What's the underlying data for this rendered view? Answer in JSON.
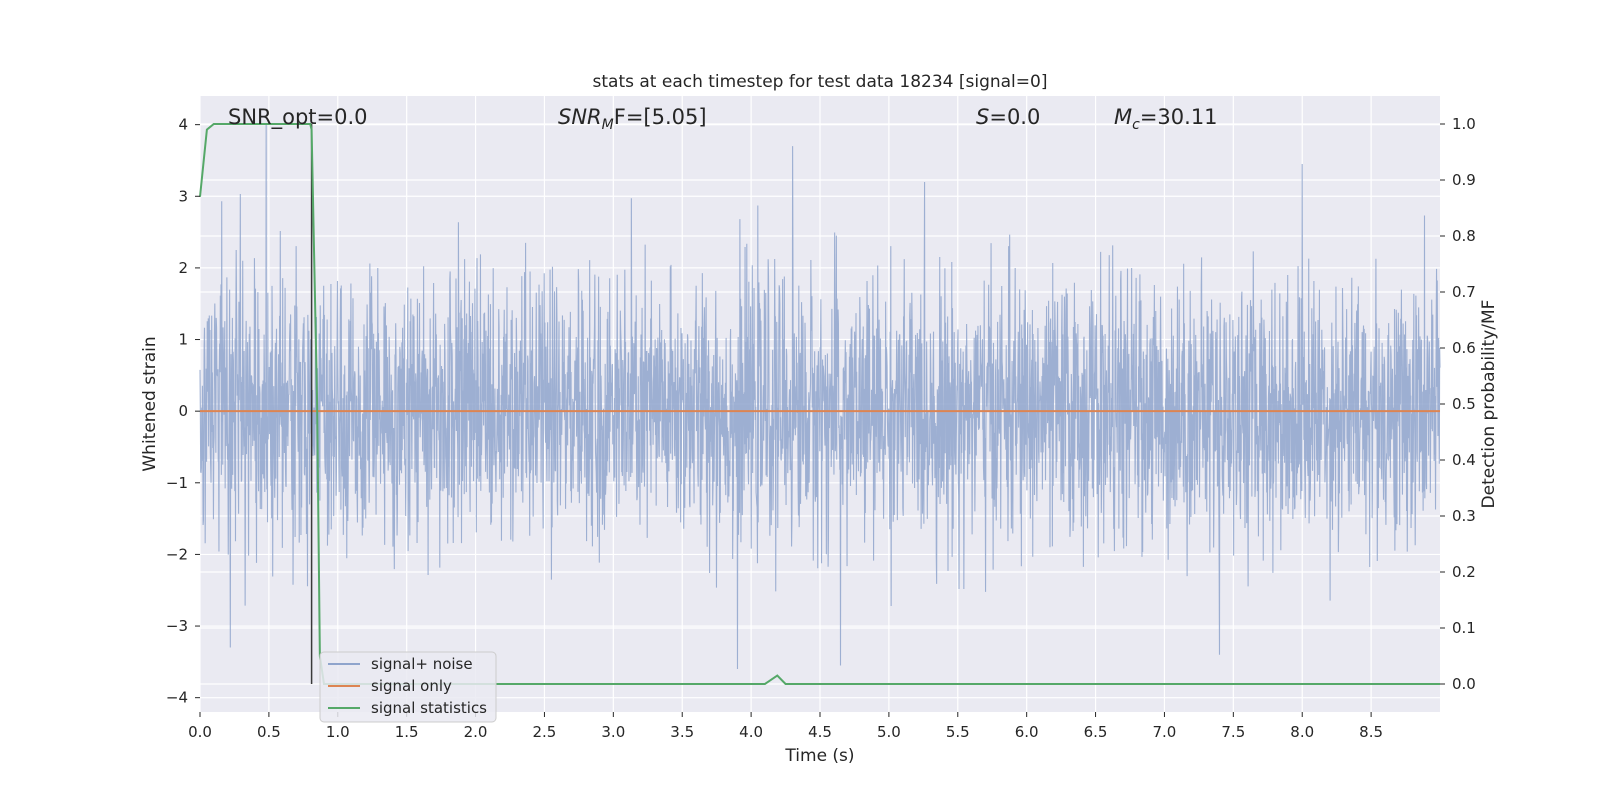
{
  "chart_data": {
    "type": "line",
    "title": "stats at each timestep for test data 18234 [signal=0]",
    "xlabel": "Time (s)",
    "ylabel": "Whitened strain",
    "y2label": "Detection probability/MF",
    "xlim": [
      0.0,
      9.0
    ],
    "ylim": [
      -4.2,
      4.4
    ],
    "y2lim": [
      -0.05,
      1.05
    ],
    "xticks": [
      "0.0",
      "0.5",
      "1.0",
      "1.5",
      "2.0",
      "2.5",
      "3.0",
      "3.5",
      "4.0",
      "4.5",
      "5.0",
      "5.5",
      "6.0",
      "6.5",
      "7.0",
      "7.5",
      "8.0",
      "8.5"
    ],
    "yticks": [
      "4",
      "3",
      "2",
      "1",
      "0",
      "−1",
      "−2",
      "−3",
      "−4"
    ],
    "y2ticks": [
      "1.0",
      "0.9",
      "0.8",
      "0.7",
      "0.6",
      "0.5",
      "0.4",
      "0.3",
      "0.2",
      "0.1",
      "0.0"
    ],
    "grid": true,
    "legend_position": "lower-left",
    "annotations": {
      "snr_opt": "SNR_opt=0.0",
      "snr_mf_name": "SNR",
      "snr_mf_sub": "M",
      "snr_mf_rest": "F=[5.05]",
      "s_name": "S",
      "s_rest": "=0.0",
      "mc_name": "M",
      "mc_sub": "c",
      "mc_rest": "=30.11"
    },
    "marker_line_x": 0.81,
    "series": [
      {
        "name": "signal+ noise",
        "color": "#8fa4cc",
        "kind": "noise",
        "approx_std": 0.9,
        "notable_peaks": [
          [
            0.48,
            4.0
          ],
          [
            0.22,
            -3.3
          ],
          [
            4.3,
            3.7
          ],
          [
            8.0,
            3.45
          ],
          [
            3.9,
            -3.6
          ],
          [
            4.65,
            -3.55
          ],
          [
            7.4,
            -3.4
          ]
        ]
      },
      {
        "name": "signal only",
        "color": "#dd8452",
        "kind": "flat",
        "values": [
          [
            0.0,
            0.0
          ],
          [
            9.0,
            0.0
          ]
        ]
      },
      {
        "name": "signal statistics",
        "color": "#55a868",
        "kind": "line",
        "axis": "right",
        "values": [
          [
            0.0,
            0.87
          ],
          [
            0.05,
            0.99
          ],
          [
            0.1,
            1.0
          ],
          [
            0.8,
            1.0
          ],
          [
            0.81,
            0.99
          ],
          [
            0.85,
            0.5
          ],
          [
            0.87,
            0.05
          ],
          [
            0.9,
            0.0
          ],
          [
            4.1,
            0.0
          ],
          [
            4.13,
            0.005
          ],
          [
            4.19,
            0.015
          ],
          [
            4.25,
            0.0
          ],
          [
            9.0,
            0.0
          ]
        ]
      }
    ]
  }
}
